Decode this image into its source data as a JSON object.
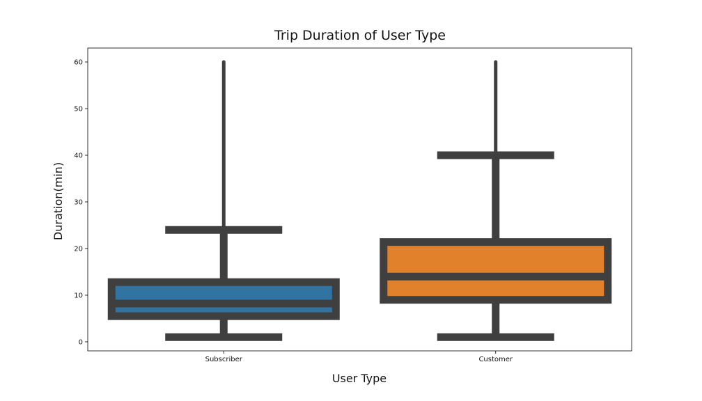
{
  "chart_data": {
    "type": "box",
    "title": "Trip Duration of User Type",
    "xlabel": "User Type",
    "ylabel": "Duration(min)",
    "ylim": [
      -2,
      63
    ],
    "yticks": [
      0,
      10,
      20,
      30,
      40,
      50,
      60
    ],
    "grid": false,
    "legend": "none",
    "categories": [
      "Subscriber",
      "Customer"
    ],
    "boxes": [
      {
        "category": "Subscriber",
        "color": "#3274a1",
        "whisker_low": 1.0,
        "q1": 5.5,
        "median": 8.2,
        "q3": 12.8,
        "whisker_high": 24.0,
        "outlier_max": 60.0
      },
      {
        "category": "Customer",
        "color": "#e1812c",
        "whisker_low": 1.0,
        "q1": 9.0,
        "median": 14.0,
        "q3": 21.4,
        "whisker_high": 40.0,
        "outlier_max": 60.0
      }
    ],
    "line_color": "#3f3f3f"
  }
}
